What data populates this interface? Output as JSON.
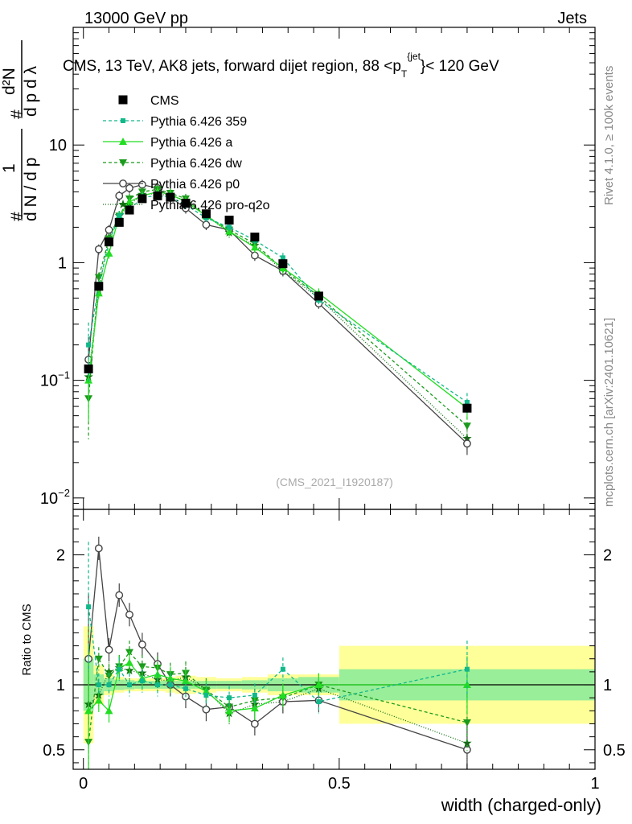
{
  "header": {
    "energy": "13000 GeV pp",
    "category": "Jets",
    "side_top": "Rivet 4.1.0, ≥ 100k events",
    "side_bottom": "mcplots.cern.ch [arXiv:2401.10621]"
  },
  "chart_data": [
    {
      "type": "line",
      "title": "CMS, 13 TeV, AK8 jets, forward dijet region, 88 <p_T^{jet}< 120 GeV",
      "title_prefix": "CMS, 13 TeV, AK8 jets, forward dijet region, 88 <p",
      "title_sub": "T",
      "title_sup": "{jet",
      "title_suffix": "}< 120 GeV",
      "ylabel": "1/(dN/dp_T) d²N/(dp_T dλ)",
      "yscale": "log",
      "ylim": [
        0.008,
        100
      ],
      "xlim": [
        -0.02,
        1.0
      ],
      "y_ticks": [
        {
          "value": 0.01,
          "base": "10",
          "exp": "−2"
        },
        {
          "value": 0.1,
          "base": "10",
          "exp": "−1"
        },
        {
          "value": 1,
          "base": "1",
          "exp": ""
        },
        {
          "value": 10,
          "base": "10",
          "exp": ""
        }
      ],
      "annotation": "(CMS_2021_I1920187)",
      "legend_position": "top-left",
      "x": [
        0.01,
        0.03,
        0.05,
        0.07,
        0.09,
        0.115,
        0.145,
        0.17,
        0.2,
        0.24,
        0.285,
        0.335,
        0.39,
        0.46,
        0.75
      ],
      "series": [
        {
          "name": "CMS",
          "color": "#000000",
          "marker": "square",
          "dash": "none",
          "values": [
            0.125,
            0.63,
            1.5,
            2.2,
            2.8,
            3.5,
            3.7,
            3.6,
            3.2,
            2.6,
            2.3,
            1.65,
            0.98,
            0.52,
            0.058
          ]
        },
        {
          "name": "Pythia 6.426 359",
          "color": "#11b88a",
          "marker": "square-small",
          "dash": "4,3",
          "values": [
            0.2,
            0.63,
            1.5,
            2.5,
            2.8,
            3.6,
            3.7,
            3.6,
            3.1,
            2.4,
            2.0,
            1.55,
            1.1,
            0.48,
            0.065
          ]
        },
        {
          "name": "Pythia 6.426 a",
          "color": "#22dd22",
          "marker": "triangle-up",
          "dash": "none",
          "values": [
            0.1,
            0.55,
            1.2,
            2.5,
            3.3,
            3.7,
            4.0,
            3.8,
            3.3,
            2.5,
            1.85,
            1.35,
            0.9,
            0.55,
            0.058
          ]
        },
        {
          "name": "Pythia 6.426 dw",
          "color": "#1c9a1c",
          "marker": "triangle-down",
          "dash": "4,3",
          "values": [
            0.07,
            0.75,
            1.6,
            2.5,
            3.5,
            4.0,
            4.2,
            3.9,
            3.5,
            2.5,
            1.9,
            1.45,
            0.88,
            0.52,
            0.041
          ]
        },
        {
          "name": "Pythia 6.426 p0",
          "color": "#444444",
          "marker": "circle-open",
          "dash": "none",
          "values": [
            0.15,
            1.3,
            1.9,
            3.7,
            4.3,
            4.6,
            4.3,
            3.6,
            2.9,
            2.1,
            1.9,
            1.15,
            0.85,
            0.45,
            0.029
          ]
        },
        {
          "name": "Pythia 6.426 pro-q2o",
          "color": "#0e6e0e",
          "marker": "star",
          "dash": "1,2",
          "values": [
            0.107,
            0.58,
            1.65,
            2.5,
            3.1,
            3.8,
            3.85,
            3.7,
            3.4,
            2.5,
            1.8,
            1.4,
            0.85,
            0.5,
            0.032
          ]
        }
      ]
    },
    {
      "type": "line",
      "title": "",
      "xlabel": "width (charged-only)",
      "ylabel": "Ratio to CMS",
      "ylim": [
        0.35,
        2.35
      ],
      "y_ticks": [
        0.5,
        1,
        2
      ],
      "x_ticks": [
        0,
        0.5,
        1
      ],
      "x": [
        0.01,
        0.03,
        0.05,
        0.07,
        0.09,
        0.115,
        0.145,
        0.17,
        0.2,
        0.24,
        0.285,
        0.335,
        0.39,
        0.46,
        0.75
      ],
      "bin_edges": [
        0,
        0.02,
        0.04,
        0.06,
        0.08,
        0.1,
        0.13,
        0.16,
        0.18,
        0.22,
        0.26,
        0.31,
        0.36,
        0.42,
        0.5,
        1.0
      ],
      "band_stat": [
        0.2,
        0.08,
        0.05,
        0.04,
        0.035,
        0.03,
        0.03,
        0.03,
        0.03,
        0.03,
        0.03,
        0.035,
        0.05,
        0.06,
        0.12
      ],
      "band_total": [
        0.45,
        0.15,
        0.08,
        0.06,
        0.05,
        0.05,
        0.05,
        0.06,
        0.07,
        0.06,
        0.05,
        0.06,
        0.08,
        0.08,
        0.3
      ],
      "series": [
        {
          "name": "Pythia 6.426 359",
          "color": "#11b88a",
          "marker": "square-small",
          "dash": "4,3",
          "values": [
            1.6,
            1.0,
            1.0,
            1.12,
            1.0,
            1.03,
            1.0,
            1.0,
            0.97,
            0.92,
            0.9,
            0.92,
            1.12,
            0.87,
            1.12
          ]
        },
        {
          "name": "Pythia 6.426 a",
          "color": "#22dd22",
          "marker": "triangle-up",
          "dash": "none",
          "values": [
            0.8,
            0.88,
            0.8,
            1.13,
            1.17,
            1.05,
            1.08,
            1.05,
            1.03,
            0.95,
            0.8,
            0.82,
            0.92,
            1.0,
            1.0
          ]
        },
        {
          "name": "Pythia 6.426 dw",
          "color": "#1c9a1c",
          "marker": "triangle-down",
          "dash": "4,3",
          "values": [
            0.56,
            1.2,
            1.07,
            1.14,
            1.25,
            1.14,
            1.13,
            1.08,
            1.09,
            0.96,
            0.83,
            0.88,
            0.9,
            1.0,
            0.71
          ]
        },
        {
          "name": "Pythia 6.426 p0",
          "color": "#444444",
          "marker": "circle-open",
          "dash": "none",
          "values": [
            1.2,
            2.05,
            1.27,
            1.69,
            1.54,
            1.31,
            1.16,
            1.0,
            0.91,
            0.81,
            0.83,
            0.7,
            0.87,
            0.88,
            0.5
          ]
        },
        {
          "name": "Pythia 6.426 pro-q2o",
          "color": "#0e6e0e",
          "marker": "star",
          "dash": "1,2",
          "values": [
            0.85,
            0.92,
            1.1,
            1.13,
            1.11,
            1.09,
            1.04,
            1.03,
            1.06,
            0.96,
            0.78,
            0.85,
            0.87,
            0.97,
            0.55
          ]
        }
      ]
    }
  ]
}
